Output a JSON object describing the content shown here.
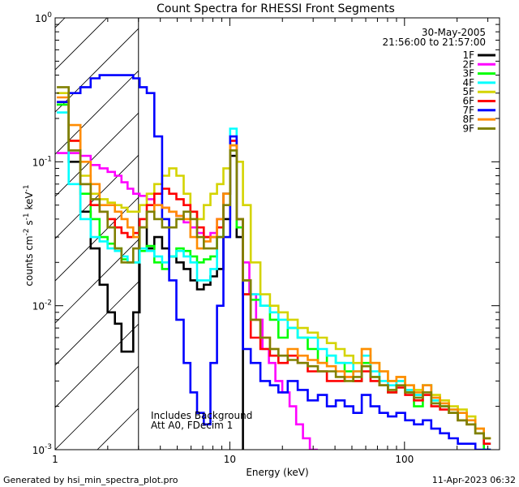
{
  "chart_data": {
    "type": "line",
    "title": "Count Spectra for RHESSI Front Segments",
    "xlabel": "Energy (keV)",
    "ylabel_parts": [
      "counts cm",
      "-2",
      " s",
      "-1",
      " keV",
      "-1"
    ],
    "xscale": "log",
    "yscale": "log",
    "xlim": [
      1,
      350
    ],
    "ylim": [
      0.001,
      1
    ],
    "x_ticks": [
      {
        "value": 1,
        "label": "1"
      },
      {
        "value": 10,
        "label": "10"
      },
      {
        "value": 100,
        "label": "100"
      }
    ],
    "y_ticks": [
      {
        "value": 0.001,
        "base": "10",
        "exp": "-3"
      },
      {
        "value": 0.01,
        "base": "10",
        "exp": "-2"
      },
      {
        "value": 0.1,
        "base": "10",
        "exp": "-1"
      },
      {
        "value": 1,
        "base": "10",
        "exp": "0"
      }
    ],
    "date": "30-May-2005",
    "time_range": "21:56:00 to 21:57:00",
    "attenuator_cutoff_kev": 3,
    "annotation": [
      "Includes Background",
      "Att A0, FDecim 1"
    ],
    "series": [
      {
        "name": "1F",
        "color": "#000000",
        "x": [
          1.1,
          1.3,
          1.5,
          1.7,
          1.9,
          2.1,
          2.3,
          2.5,
          2.7,
          2.9,
          3.2,
          3.5,
          3.9,
          4.3,
          4.7,
          5.2,
          5.7,
          6.2,
          6.8,
          7.4,
          8.1,
          8.8,
          9.6,
          10.5,
          11.4,
          12.4
        ],
        "y": [
          0.25,
          0.1,
          0.045,
          0.025,
          0.014,
          0.009,
          0.0075,
          0.0048,
          0.0048,
          0.009,
          0.035,
          0.025,
          0.03,
          0.025,
          0.022,
          0.02,
          0.018,
          0.015,
          0.013,
          0.014,
          0.016,
          0.018,
          0.04,
          0.11,
          0.03,
          0.0005
        ]
      },
      {
        "name": "2F",
        "color": "#ff00ff",
        "x": [
          1.1,
          1.3,
          1.5,
          1.7,
          1.9,
          2.1,
          2.3,
          2.5,
          2.7,
          2.9,
          3.2,
          3.5,
          3.9,
          4.3,
          4.7,
          5.2,
          5.7,
          6.2,
          6.8,
          7.4,
          8.1,
          8.8,
          9.6,
          10.5,
          11.4,
          12.4,
          13.5,
          14.8,
          16,
          17.5,
          19,
          21,
          23,
          25,
          27.5,
          30,
          33
        ],
        "y": [
          0.115,
          0.115,
          0.11,
          0.095,
          0.09,
          0.085,
          0.08,
          0.072,
          0.065,
          0.06,
          0.058,
          0.055,
          0.05,
          0.048,
          0.045,
          0.042,
          0.038,
          0.035,
          0.032,
          0.03,
          0.032,
          0.04,
          0.06,
          0.14,
          0.04,
          0.02,
          0.012,
          0.008,
          0.005,
          0.004,
          0.003,
          0.0025,
          0.002,
          0.0015,
          0.0012,
          0.001,
          0.0008
        ]
      },
      {
        "name": "3F",
        "color": "#00ff00",
        "x": [
          1.1,
          1.3,
          1.5,
          1.7,
          1.9,
          2.1,
          2.3,
          2.5,
          2.7,
          2.9,
          3.2,
          3.5,
          3.9,
          4.3,
          4.7,
          5.2,
          5.7,
          6.2,
          6.8,
          7.4,
          8.1,
          8.8,
          9.6,
          10.5,
          11.4,
          12.4,
          14,
          16,
          18,
          20,
          23,
          26,
          30,
          34,
          38,
          43,
          48,
          54,
          60,
          68,
          76,
          85,
          95,
          107,
          120,
          135,
          150,
          170,
          190,
          215,
          240,
          270,
          300
        ],
        "y": [
          0.25,
          0.12,
          0.06,
          0.04,
          0.03,
          0.027,
          0.025,
          0.021,
          0.02,
          0.02,
          0.024,
          0.026,
          0.02,
          0.018,
          0.022,
          0.025,
          0.024,
          0.022,
          0.02,
          0.021,
          0.022,
          0.03,
          0.06,
          0.12,
          0.035,
          0.012,
          0.011,
          0.01,
          0.008,
          0.006,
          0.007,
          0.006,
          0.005,
          0.004,
          0.0045,
          0.004,
          0.0035,
          0.003,
          0.004,
          0.0032,
          0.0028,
          0.0025,
          0.003,
          0.0025,
          0.002,
          0.0028,
          0.0022,
          0.002,
          0.0018,
          0.0016,
          0.0015,
          0.0013,
          0.001
        ]
      },
      {
        "name": "4F",
        "color": "#00ffff",
        "x": [
          1.1,
          1.3,
          1.5,
          1.7,
          1.9,
          2.1,
          2.3,
          2.5,
          2.7,
          2.9,
          3.2,
          3.5,
          3.9,
          4.3,
          4.7,
          5.2,
          5.7,
          6.2,
          6.8,
          7.4,
          8.1,
          8.8,
          9.6,
          10.5,
          11.4,
          12.4,
          14,
          16,
          18,
          20,
          23,
          26,
          30,
          34,
          38,
          43,
          48,
          54,
          60,
          68,
          76,
          85,
          95,
          107,
          120,
          135,
          150,
          170,
          190,
          215,
          240,
          270,
          300
        ],
        "y": [
          0.22,
          0.07,
          0.04,
          0.03,
          0.028,
          0.025,
          0.024,
          0.022,
          0.02,
          0.02,
          0.025,
          0.024,
          0.022,
          0.02,
          0.022,
          0.024,
          0.022,
          0.02,
          0.015,
          0.015,
          0.018,
          0.03,
          0.06,
          0.17,
          0.04,
          0.015,
          0.012,
          0.01,
          0.009,
          0.008,
          0.007,
          0.006,
          0.006,
          0.005,
          0.0045,
          0.004,
          0.004,
          0.0035,
          0.0045,
          0.0035,
          0.003,
          0.0028,
          0.003,
          0.0026,
          0.0024,
          0.0028,
          0.0022,
          0.002,
          0.0019,
          0.0018,
          0.0016,
          0.0013,
          0.0011
        ]
      },
      {
        "name": "5F",
        "color": "#d4d400",
        "x": [
          1.1,
          1.3,
          1.5,
          1.7,
          1.9,
          2.1,
          2.3,
          2.5,
          2.7,
          2.9,
          3.2,
          3.5,
          3.9,
          4.3,
          4.7,
          5.2,
          5.7,
          6.2,
          6.8,
          7.4,
          8.1,
          8.8,
          9.6,
          10.5,
          11.4,
          12.4,
          14,
          16,
          18,
          20,
          23,
          26,
          30,
          34,
          38,
          43,
          48,
          54,
          60,
          68,
          76,
          85,
          95,
          107,
          120,
          135,
          150,
          170,
          190,
          215,
          240,
          270,
          300
        ],
        "y": [
          0.3,
          0.14,
          0.08,
          0.06,
          0.055,
          0.052,
          0.05,
          0.048,
          0.045,
          0.045,
          0.05,
          0.06,
          0.07,
          0.08,
          0.09,
          0.08,
          0.06,
          0.045,
          0.04,
          0.05,
          0.06,
          0.07,
          0.09,
          0.13,
          0.1,
          0.05,
          0.02,
          0.012,
          0.01,
          0.009,
          0.008,
          0.007,
          0.0065,
          0.006,
          0.0055,
          0.005,
          0.0045,
          0.004,
          0.005,
          0.004,
          0.0035,
          0.003,
          0.0032,
          0.0028,
          0.0026,
          0.0028,
          0.0024,
          0.0022,
          0.002,
          0.0019,
          0.0017,
          0.0014,
          0.0012
        ]
      },
      {
        "name": "6F",
        "color": "#ff0000",
        "x": [
          1.1,
          1.3,
          1.5,
          1.7,
          1.9,
          2.1,
          2.3,
          2.5,
          2.7,
          2.9,
          3.2,
          3.5,
          3.9,
          4.3,
          4.7,
          5.2,
          5.7,
          6.2,
          6.8,
          7.4,
          8.1,
          8.8,
          9.6,
          10.5,
          11.4,
          12.4,
          14,
          16,
          18,
          20,
          23,
          26,
          30,
          34,
          38,
          43,
          48,
          54,
          60,
          68,
          76,
          85,
          95,
          107,
          120,
          135,
          150,
          170,
          190,
          215,
          240,
          270,
          300
        ],
        "y": [
          0.26,
          0.14,
          0.07,
          0.05,
          0.045,
          0.04,
          0.035,
          0.032,
          0.03,
          0.032,
          0.04,
          0.05,
          0.06,
          0.065,
          0.06,
          0.055,
          0.05,
          0.045,
          0.035,
          0.03,
          0.03,
          0.035,
          0.06,
          0.14,
          0.04,
          0.012,
          0.006,
          0.005,
          0.0045,
          0.004,
          0.0045,
          0.004,
          0.0035,
          0.0035,
          0.003,
          0.003,
          0.0032,
          0.003,
          0.0035,
          0.003,
          0.0028,
          0.0025,
          0.0027,
          0.0024,
          0.0022,
          0.0024,
          0.002,
          0.0019,
          0.0018,
          0.0016,
          0.0015,
          0.0013,
          0.0011
        ]
      },
      {
        "name": "7F",
        "color": "#0000ff",
        "x": [
          1.1,
          1.3,
          1.5,
          1.7,
          1.9,
          2.1,
          2.3,
          2.5,
          2.7,
          2.9,
          3.2,
          3.5,
          3.9,
          4.3,
          4.7,
          5.2,
          5.7,
          6.2,
          6.8,
          7.4,
          8.1,
          8.8,
          9.6,
          10.5,
          11.4,
          12.4,
          14,
          16,
          18,
          20,
          23,
          26,
          30,
          34,
          38,
          43,
          48,
          54,
          60,
          68,
          76,
          85,
          95,
          107,
          120,
          135,
          150,
          170,
          190,
          215,
          240,
          270,
          300
        ],
        "y": [
          0.26,
          0.3,
          0.33,
          0.38,
          0.4,
          0.4,
          0.4,
          0.4,
          0.4,
          0.38,
          0.33,
          0.3,
          0.15,
          0.04,
          0.015,
          0.008,
          0.004,
          0.0025,
          0.0018,
          0.0015,
          0.004,
          0.01,
          0.03,
          0.15,
          0.04,
          0.005,
          0.004,
          0.003,
          0.0028,
          0.0025,
          0.003,
          0.0026,
          0.0022,
          0.0024,
          0.002,
          0.0022,
          0.002,
          0.0018,
          0.0024,
          0.002,
          0.0018,
          0.0017,
          0.0018,
          0.0016,
          0.0015,
          0.0016,
          0.0014,
          0.0013,
          0.0012,
          0.0011,
          0.0011,
          0.001,
          0.001
        ]
      },
      {
        "name": "8F",
        "color": "#ff8c00",
        "x": [
          1.1,
          1.3,
          1.5,
          1.7,
          1.9,
          2.1,
          2.3,
          2.5,
          2.7,
          2.9,
          3.2,
          3.5,
          3.9,
          4.3,
          4.7,
          5.2,
          5.7,
          6.2,
          6.8,
          7.4,
          8.1,
          8.8,
          9.6,
          10.5,
          11.4,
          12.4,
          14,
          16,
          18,
          20,
          23,
          26,
          30,
          34,
          38,
          43,
          48,
          54,
          60,
          68,
          76,
          85,
          95,
          107,
          120,
          135,
          150,
          170,
          190,
          215,
          240,
          270,
          300
        ],
        "y": [
          0.28,
          0.18,
          0.1,
          0.07,
          0.05,
          0.05,
          0.045,
          0.04,
          0.035,
          0.03,
          0.035,
          0.045,
          0.05,
          0.048,
          0.045,
          0.042,
          0.04,
          0.03,
          0.025,
          0.028,
          0.03,
          0.04,
          0.06,
          0.13,
          0.04,
          0.015,
          0.008,
          0.006,
          0.005,
          0.0045,
          0.005,
          0.0045,
          0.0042,
          0.004,
          0.0038,
          0.0035,
          0.0032,
          0.0035,
          0.005,
          0.004,
          0.0035,
          0.003,
          0.0032,
          0.0028,
          0.0025,
          0.0028,
          0.0023,
          0.0021,
          0.0019,
          0.0018,
          0.0016,
          0.0014,
          0.0012
        ]
      },
      {
        "name": "9F",
        "color": "#808000",
        "x": [
          1.1,
          1.3,
          1.5,
          1.7,
          1.9,
          2.1,
          2.3,
          2.5,
          2.7,
          2.9,
          3.2,
          3.5,
          3.9,
          4.3,
          4.7,
          5.2,
          5.7,
          6.2,
          6.8,
          7.4,
          8.1,
          8.8,
          9.6,
          10.5,
          11.4,
          12.4,
          14,
          16,
          18,
          20,
          23,
          26,
          30,
          34,
          38,
          43,
          48,
          54,
          60,
          68,
          76,
          85,
          95,
          107,
          120,
          135,
          150,
          170,
          190,
          215,
          240,
          270,
          300
        ],
        "y": [
          0.33,
          0.12,
          0.07,
          0.055,
          0.045,
          0.035,
          0.025,
          0.02,
          0.02,
          0.025,
          0.035,
          0.045,
          0.04,
          0.035,
          0.035,
          0.04,
          0.045,
          0.04,
          0.03,
          0.025,
          0.025,
          0.03,
          0.05,
          0.12,
          0.04,
          0.015,
          0.008,
          0.006,
          0.005,
          0.0045,
          0.0042,
          0.004,
          0.0038,
          0.0035,
          0.0035,
          0.0032,
          0.003,
          0.0032,
          0.0038,
          0.0032,
          0.0028,
          0.0026,
          0.0028,
          0.0025,
          0.0023,
          0.0025,
          0.0021,
          0.002,
          0.0018,
          0.0016,
          0.0015,
          0.0013,
          0.0012
        ]
      }
    ]
  },
  "footer": {
    "generated_by": "Generated by hsi_min_spectra_plot.pro",
    "timestamp": "11-Apr-2023 06:32"
  }
}
